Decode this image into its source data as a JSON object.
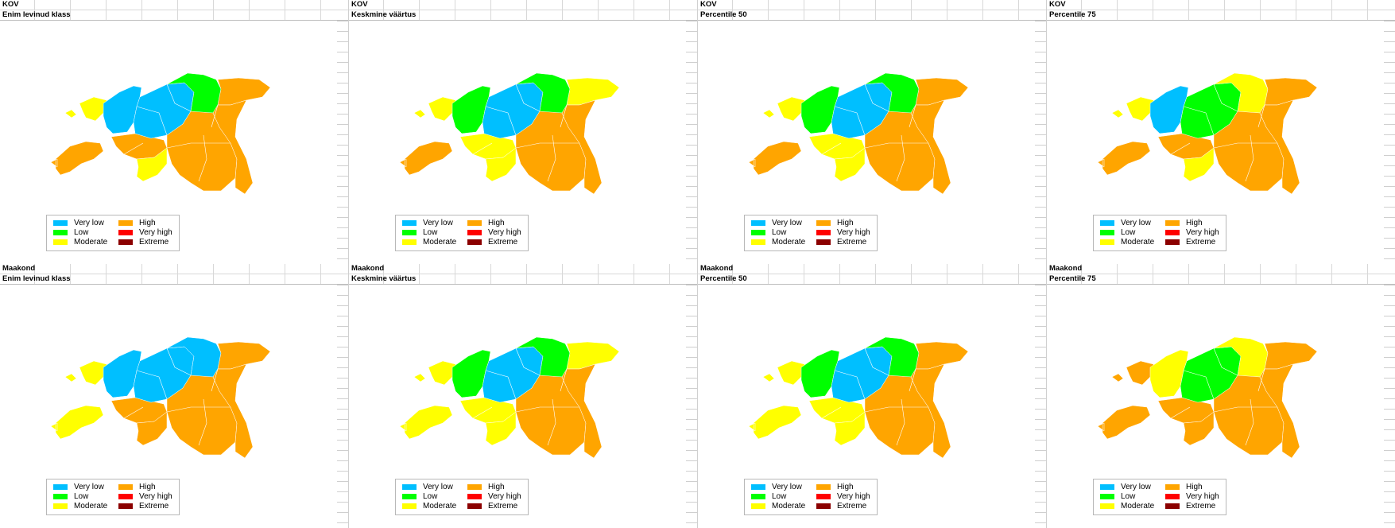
{
  "colors": {
    "very_low": "#00BFFF",
    "low": "#00FF00",
    "moderate": "#FFFF00",
    "high": "#FFA500",
    "very_high": "#FF0000",
    "extreme": "#8B0000",
    "boundary": "#ffffff"
  },
  "legend": {
    "very_low": "Very low",
    "low": "Low",
    "moderate": "Moderate",
    "high": "High",
    "very_high": "Very high",
    "extreme": "Extreme"
  },
  "panels": [
    {
      "unit": "KOV",
      "stat": "Enim levinud klass",
      "scheme": "kov_mode"
    },
    {
      "unit": "KOV",
      "stat": "Keskmine väärtus",
      "scheme": "kov_mean"
    },
    {
      "unit": "KOV",
      "stat": "Percentile 50",
      "scheme": "kov_p50"
    },
    {
      "unit": "KOV",
      "stat": "Percentile 75",
      "scheme": "kov_p75"
    },
    {
      "unit": "Maakond",
      "stat": "Enim levinud klass",
      "scheme": "mk_mode"
    },
    {
      "unit": "Maakond",
      "stat": "Keskmine väärtus",
      "scheme": "mk_mean"
    },
    {
      "unit": "Maakond",
      "stat": "Percentile 50",
      "scheme": "mk_p50"
    },
    {
      "unit": "Maakond",
      "stat": "Percentile 75",
      "scheme": "mk_p75"
    }
  ],
  "schemes": {
    "kov_mode": {
      "islands": "moderate",
      "saaremaa": "high",
      "west": "high",
      "southwest": "moderate",
      "harju": "very_low",
      "center": "very_low",
      "north": "low",
      "ida": "high",
      "south": "high",
      "east": "high"
    },
    "kov_mean": {
      "islands": "moderate",
      "saaremaa": "high",
      "west": "moderate",
      "southwest": "moderate",
      "harju": "low",
      "center": "very_low",
      "north": "low",
      "ida": "moderate",
      "south": "high",
      "east": "high"
    },
    "kov_p50": {
      "islands": "moderate",
      "saaremaa": "high",
      "west": "moderate",
      "southwest": "moderate",
      "harju": "low",
      "center": "very_low",
      "north": "low",
      "ida": "high",
      "south": "high",
      "east": "high"
    },
    "kov_p75": {
      "islands": "moderate",
      "saaremaa": "high",
      "west": "high",
      "southwest": "moderate",
      "harju": "very_low",
      "center": "low",
      "north": "moderate",
      "ida": "high",
      "south": "high",
      "east": "high"
    },
    "mk_mode": {
      "islands": "moderate",
      "saaremaa": "moderate",
      "west": "high",
      "southwest": "high",
      "harju": "very_low",
      "center": "very_low",
      "north": "very_low",
      "ida": "high",
      "south": "high",
      "east": "high"
    },
    "mk_mean": {
      "islands": "moderate",
      "saaremaa": "moderate",
      "west": "moderate",
      "southwest": "moderate",
      "harju": "low",
      "center": "very_low",
      "north": "low",
      "ida": "moderate",
      "south": "high",
      "east": "high"
    },
    "mk_p50": {
      "islands": "moderate",
      "saaremaa": "moderate",
      "west": "moderate",
      "southwest": "moderate",
      "harju": "low",
      "center": "very_low",
      "north": "low",
      "ida": "high",
      "south": "high",
      "east": "high"
    },
    "mk_p75": {
      "islands": "high",
      "saaremaa": "high",
      "west": "high",
      "southwest": "high",
      "harju": "moderate",
      "center": "low",
      "north": "moderate",
      "ida": "high",
      "south": "high",
      "east": "high"
    }
  }
}
